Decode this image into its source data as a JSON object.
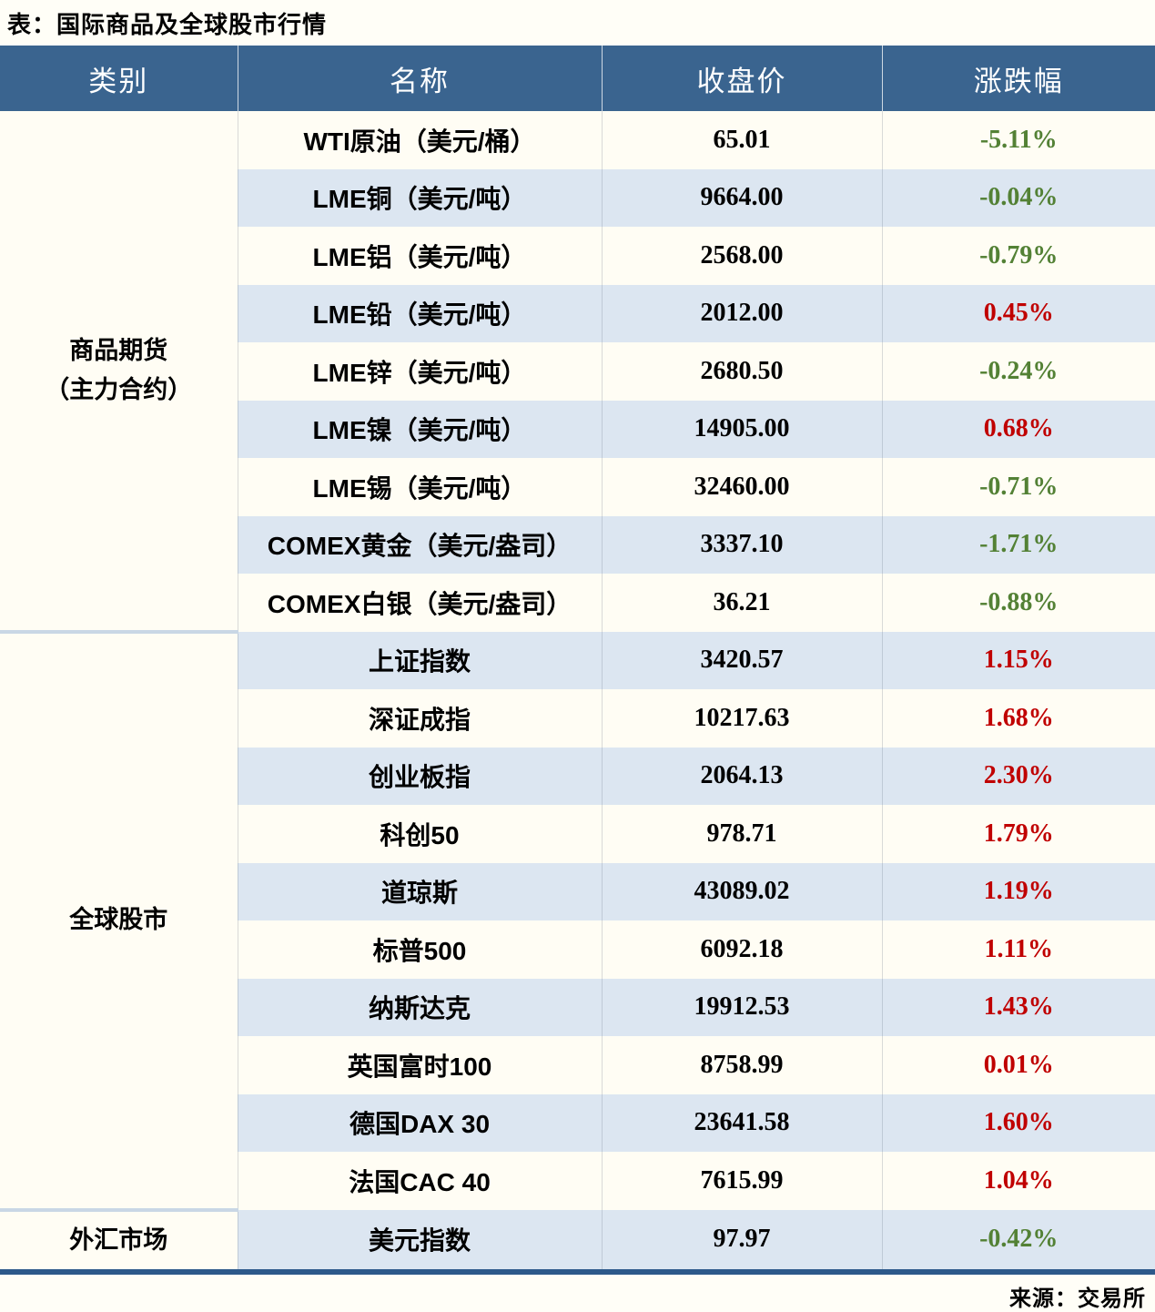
{
  "title": "表：国际商品及全球股市行情",
  "source": "来源：交易所",
  "colors": {
    "header_bg": "#3a648f",
    "row_blue": "#dce6f1",
    "row_light": "#fffdf4",
    "up_red": "#c00000",
    "down_green": "#538135",
    "bottom_bar": "#2d598a",
    "category_separator": "#c9d7e5"
  },
  "chart_data": {
    "type": "table",
    "title": "国际商品及全球股市行情",
    "columns": [
      "类别",
      "名称",
      "收盘价",
      "涨跌幅"
    ],
    "groups": [
      {
        "category": "商品期货（主力合约）",
        "category_lines": [
          "商品期货",
          "（主力合约）"
        ],
        "rows": [
          {
            "name": "WTI原油（美元/桶）",
            "close": "65.01",
            "change": "-5.11%",
            "trend": "down"
          },
          {
            "name": "LME铜（美元/吨）",
            "close": "9664.00",
            "change": "-0.04%",
            "trend": "down"
          },
          {
            "name": "LME铝（美元/吨）",
            "close": "2568.00",
            "change": "-0.79%",
            "trend": "down"
          },
          {
            "name": "LME铅（美元/吨）",
            "close": "2012.00",
            "change": "0.45%",
            "trend": "up"
          },
          {
            "name": "LME锌（美元/吨）",
            "close": "2680.50",
            "change": "-0.24%",
            "trend": "down"
          },
          {
            "name": "LME镍（美元/吨）",
            "close": "14905.00",
            "change": "0.68%",
            "trend": "up"
          },
          {
            "name": "LME锡（美元/吨）",
            "close": "32460.00",
            "change": "-0.71%",
            "trend": "down"
          },
          {
            "name": "COMEX黄金（美元/盎司）",
            "close": "3337.10",
            "change": "-1.71%",
            "trend": "down"
          },
          {
            "name": "COMEX白银（美元/盎司）",
            "close": "36.21",
            "change": "-0.88%",
            "trend": "down"
          }
        ]
      },
      {
        "category": "全球股市",
        "category_lines": [
          "全球股市"
        ],
        "rows": [
          {
            "name": "上证指数",
            "close": "3420.57",
            "change": "1.15%",
            "trend": "up"
          },
          {
            "name": "深证成指",
            "close": "10217.63",
            "change": "1.68%",
            "trend": "up"
          },
          {
            "name": "创业板指",
            "close": "2064.13",
            "change": "2.30%",
            "trend": "up"
          },
          {
            "name": "科创50",
            "close": "978.71",
            "change": "1.79%",
            "trend": "up"
          },
          {
            "name": "道琼斯",
            "close": "43089.02",
            "change": "1.19%",
            "trend": "up"
          },
          {
            "name": "标普500",
            "close": "6092.18",
            "change": "1.11%",
            "trend": "up"
          },
          {
            "name": "纳斯达克",
            "close": "19912.53",
            "change": "1.43%",
            "trend": "up"
          },
          {
            "name": "英国富时100",
            "close": "8758.99",
            "change": "0.01%",
            "trend": "up"
          },
          {
            "name": "德国DAX 30",
            "close": "23641.58",
            "change": "1.60%",
            "trend": "up"
          },
          {
            "name": "法国CAC 40",
            "close": "7615.99",
            "change": "1.04%",
            "trend": "up"
          }
        ]
      },
      {
        "category": "外汇市场",
        "category_lines": [
          "外汇市场"
        ],
        "rows": [
          {
            "name": "美元指数",
            "close": "97.97",
            "change": "-0.42%",
            "trend": "down"
          }
        ]
      }
    ]
  }
}
